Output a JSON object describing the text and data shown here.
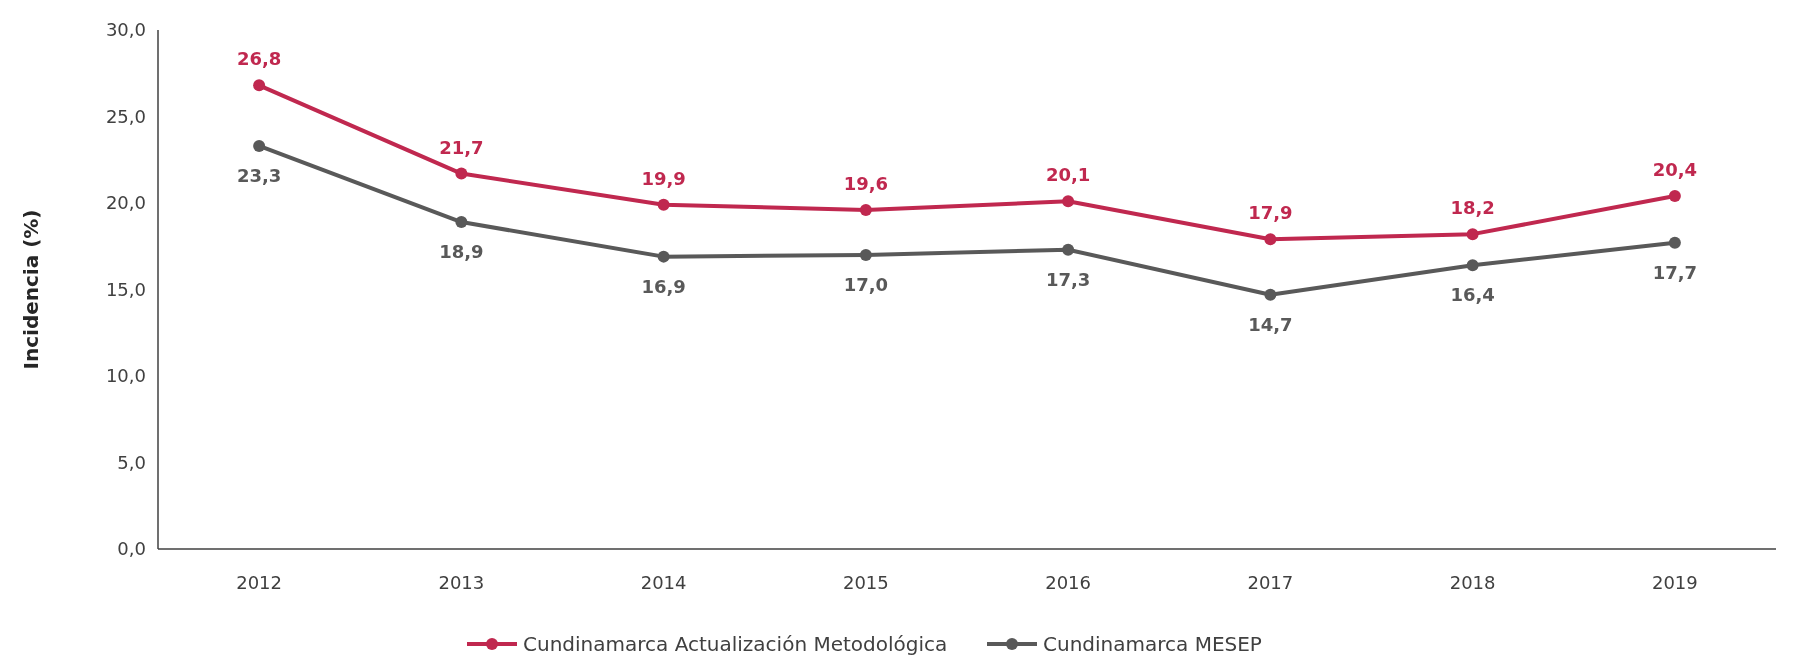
{
  "chart_data": {
    "type": "line",
    "ylabel": "Incidencia (%)",
    "categories": [
      "2012",
      "2013",
      "2014",
      "2015",
      "2016",
      "2017",
      "2018",
      "2019"
    ],
    "series": [
      {
        "name": "Cundinamarca Actualización Metodológica",
        "color": "#c0284f",
        "values": [
          26.8,
          21.7,
          19.9,
          19.6,
          20.1,
          17.9,
          18.2,
          20.4
        ],
        "value_labels": [
          "26,8",
          "21,7",
          "19,9",
          "19,6",
          "20,1",
          "17,9",
          "18,2",
          "20,4"
        ]
      },
      {
        "name": "Cundinamarca MESEP",
        "color": "#595959",
        "values": [
          23.3,
          18.9,
          16.9,
          17.0,
          17.3,
          14.7,
          16.4,
          17.7
        ],
        "value_labels": [
          "23,3",
          "18,9",
          "16,9",
          "17,0",
          "17,3",
          "14,7",
          "16,4",
          "17,7"
        ]
      }
    ],
    "ylim": [
      0,
      30
    ],
    "yticks": [
      {
        "value": 0,
        "label": "0,0"
      },
      {
        "value": 5,
        "label": "5,0"
      },
      {
        "value": 10,
        "label": "10,0"
      },
      {
        "value": 15,
        "label": "15,0"
      },
      {
        "value": 20,
        "label": "20,0"
      },
      {
        "value": 25,
        "label": "25,0"
      },
      {
        "value": 30,
        "label": "30,0"
      }
    ],
    "grid": false,
    "legend": "bottom",
    "marker": "circle",
    "line_style": "solid"
  }
}
